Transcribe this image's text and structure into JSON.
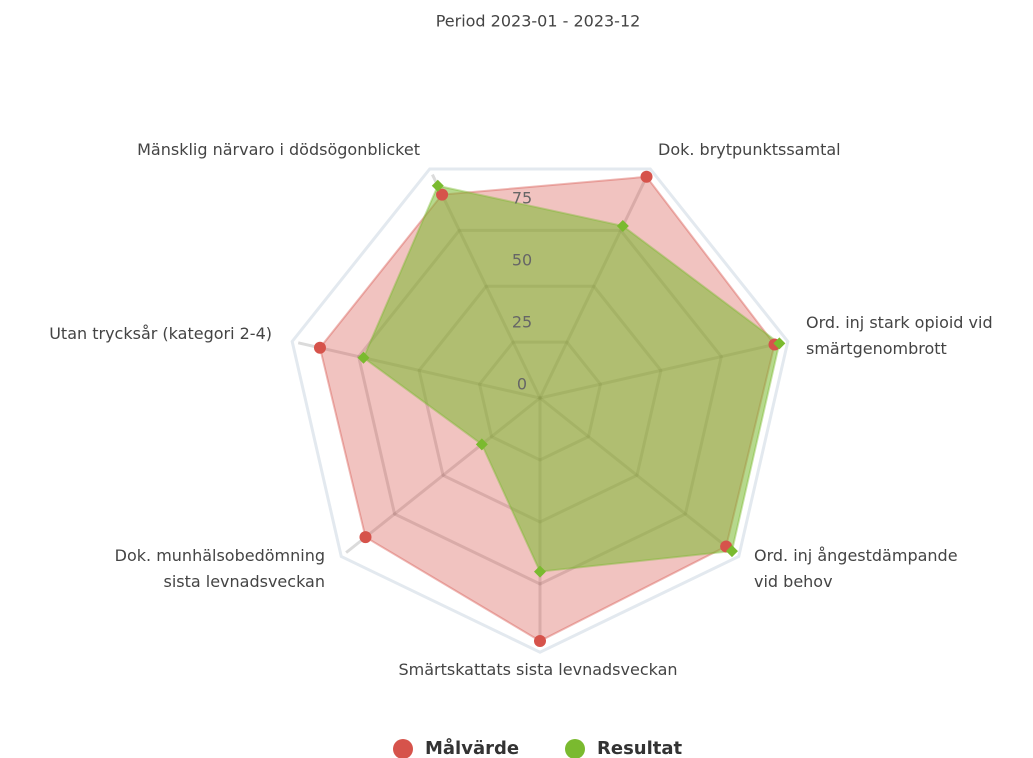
{
  "chart_data": {
    "type": "radar",
    "title": "Period 2023-01 - 2023-12",
    "categories": [
      [
        "Mänsklig närvaro i dödsögonblicket"
      ],
      [
        "Dok. brytpunktssamtal"
      ],
      [
        "Ord. inj stark opioid vid",
        "smärtgenombrott"
      ],
      [
        "Ord. inj ångestdämpande",
        "vid behov"
      ],
      [
        "Smärtskattats sista levnadsveckan"
      ],
      [
        "Dok. munhälsobedömning",
        "sista levnadsveckan"
      ],
      [
        "Utan trycksår (kategori 2-4)"
      ]
    ],
    "series": [
      {
        "name": "Målvärde",
        "color": "#d6534b",
        "values": [
          91,
          99,
          97,
          96,
          98,
          90,
          91
        ]
      },
      {
        "name": "Resultat",
        "color": "#7aba2f",
        "values": [
          95,
          77,
          99,
          99,
          70,
          30,
          73
        ]
      }
    ],
    "ylim": [
      0,
      100
    ],
    "yticks": [
      0,
      25,
      50,
      75
    ],
    "grid": true,
    "legend": "bottom"
  }
}
